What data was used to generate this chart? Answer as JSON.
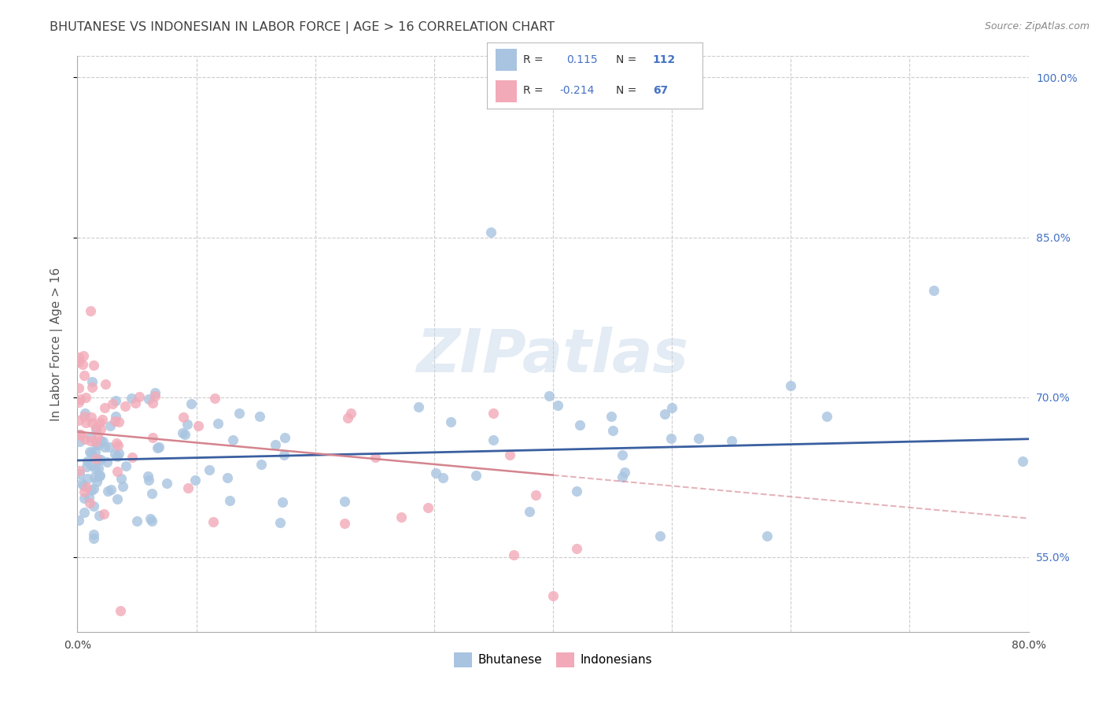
{
  "title": "BHUTANESE VS INDONESIAN IN LABOR FORCE | AGE > 16 CORRELATION CHART",
  "source": "Source: ZipAtlas.com",
  "ylabel": "In Labor Force | Age > 16",
  "watermark": "ZIPatlas",
  "xlim": [
    0.0,
    0.8
  ],
  "ylim": [
    0.48,
    1.02
  ],
  "xtick_positions": [
    0.0,
    0.1,
    0.2,
    0.3,
    0.4,
    0.5,
    0.6,
    0.7,
    0.8
  ],
  "xtick_labels": [
    "0.0%",
    "",
    "",
    "",
    "",
    "",
    "",
    "",
    "80.0%"
  ],
  "ytick_positions": [
    0.55,
    0.7,
    0.85,
    1.0
  ],
  "ytick_labels": [
    "55.0%",
    "70.0%",
    "85.0%",
    "100.0%"
  ],
  "blue_color": "#a8c4e0",
  "pink_color": "#f2aab8",
  "blue_line_color": "#3a5fa0",
  "pink_line_color": "#d4848e",
  "legend_R1": "0.115",
  "legend_N1": "112",
  "legend_R2": "-0.214",
  "legend_N2": "67",
  "bg_color": "#ffffff",
  "grid_color": "#cccccc",
  "title_color": "#404040",
  "label_color": "#555555",
  "right_tick_color": "#4472c4"
}
